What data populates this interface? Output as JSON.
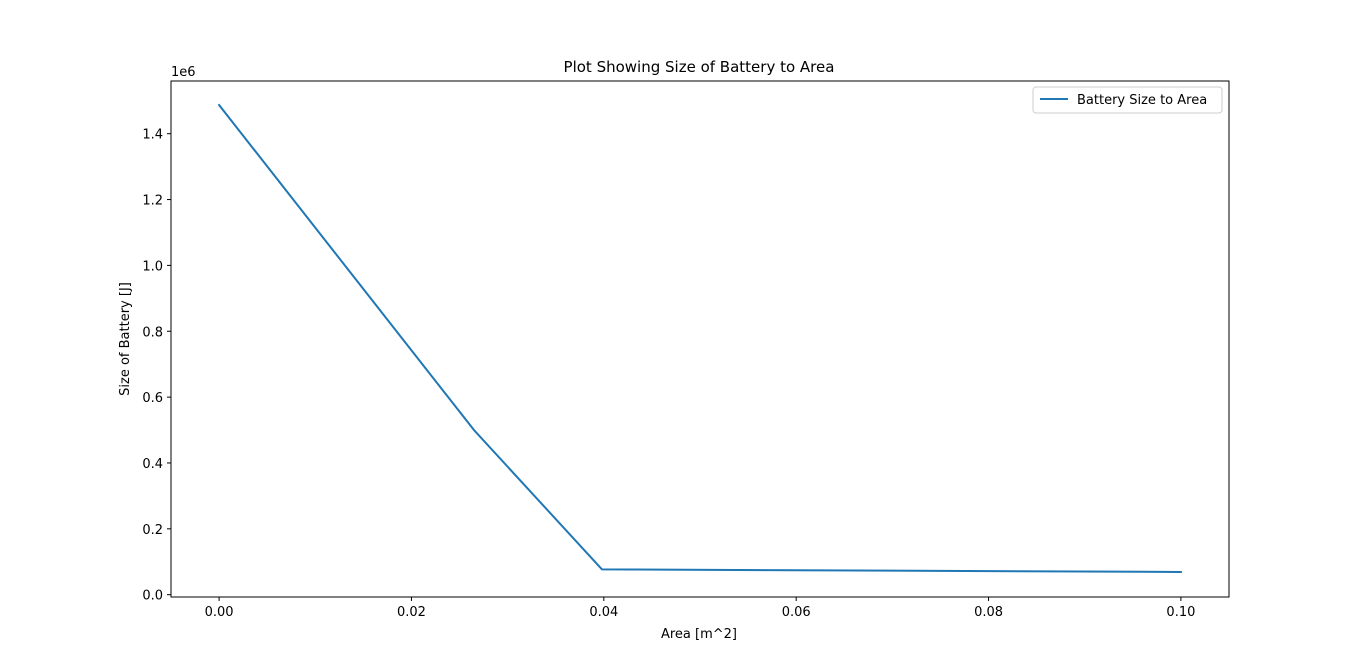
{
  "chart_data": {
    "type": "line",
    "title": "Plot Showing Size of Battery to Area",
    "xlabel": "Area [m^2]",
    "ylabel": "Size of Battery [J]",
    "y_offset_text": "1e6",
    "xlim": [
      -0.005,
      0.105
    ],
    "ylim": [
      -0.007,
      1.56
    ],
    "x_ticks": [
      0.0,
      0.02,
      0.04,
      0.06,
      0.08,
      0.1
    ],
    "x_tick_labels": [
      "0.00",
      "0.02",
      "0.04",
      "0.06",
      "0.08",
      "0.10"
    ],
    "y_ticks": [
      0.0,
      0.2,
      0.4,
      0.6,
      0.8,
      1.0,
      1.2,
      1.4
    ],
    "y_tick_labels": [
      "0.0",
      "0.2",
      "0.4",
      "0.6",
      "0.8",
      "1.0",
      "1.2",
      "1.4"
    ],
    "grid": false,
    "legend_position": "top-right",
    "series": [
      {
        "name": "Battery Size to Area",
        "color": "#1f77b4",
        "x": [
          0.0,
          0.0265,
          0.0398,
          0.1
        ],
        "y": [
          1.487,
          0.5,
          0.077,
          0.069
        ]
      }
    ]
  }
}
